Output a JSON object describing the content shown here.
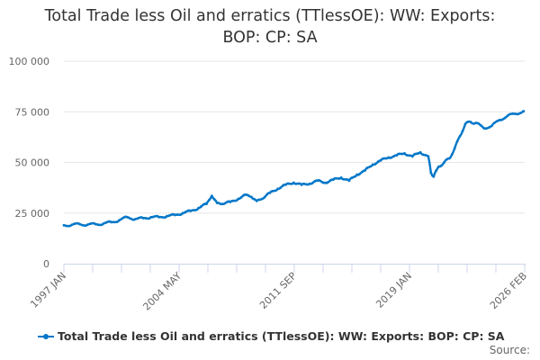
{
  "title": "Total Trade less Oil and erratics (TTlessOE): WW: Exports: BOP: CP: SA",
  "title_lines": [
    "Total Trade less Oil and erratics (TTlessOE): WW: Exports:",
    "BOP: CP: SA"
  ],
  "legend": {
    "label": "Total Trade less Oil and erratics (TTlessOE): WW: Exports: BOP: CP: SA"
  },
  "source_label": "Source:",
  "colors": {
    "series": "#0077c8",
    "grid": "#e6e6e6",
    "axis": "#ccd6eb",
    "text": "#333333",
    "tick_text": "#666666"
  },
  "chart_data": {
    "type": "line",
    "title": "Total Trade less Oil and erratics (TTlessOE): WW: Exports: BOP: CP: SA",
    "xlabel": "",
    "ylabel": "",
    "ylim": [
      0,
      100000
    ],
    "yticks": [
      0,
      25000,
      50000,
      75000,
      100000
    ],
    "ytick_labels": [
      "0",
      "25 000",
      "50 000",
      "75 000",
      "100 000"
    ],
    "xtick_labels": [
      "1997 JAN",
      "2004 MAY",
      "2011 SEP",
      "2019 JAN",
      "2026 FEB"
    ],
    "grid": true,
    "legend_position": "bottom",
    "series": [
      {
        "name": "Total Trade less Oil and erratics (TTlessOE): WW: Exports: BOP: CP: SA",
        "x": [
          "1997 JAN",
          "1997 JUL",
          "1998 JAN",
          "1998 JUL",
          "1999 JAN",
          "1999 JUL",
          "2000 JAN",
          "2000 JUL",
          "2001 JAN",
          "2001 JUL",
          "2002 JAN",
          "2002 JUL",
          "2003 JAN",
          "2003 JUL",
          "2004 JAN",
          "2004 JUL",
          "2005 JAN",
          "2005 JUL",
          "2006 JAN",
          "2006 MAY",
          "2006 SEP",
          "2007 JAN",
          "2007 JUL",
          "2008 JAN",
          "2008 JUL",
          "2008 NOV",
          "2009 MAR",
          "2009 JUL",
          "2010 JAN",
          "2010 JUL",
          "2011 JAN",
          "2011 JUL",
          "2012 JAN",
          "2012 JUL",
          "2013 JAN",
          "2013 JUL",
          "2014 JAN",
          "2014 JUL",
          "2015 JAN",
          "2015 JUL",
          "2016 JAN",
          "2016 JUL",
          "2017 JAN",
          "2017 JUL",
          "2018 JAN",
          "2018 JUL",
          "2019 JAN",
          "2019 JUL",
          "2020 JAN",
          "2020 MAR",
          "2020 MAY",
          "2020 SEP",
          "2021 JAN",
          "2021 MAY",
          "2021 SEP",
          "2022 JAN",
          "2022 MAY",
          "2022 SEP",
          "2023 JAN",
          "2023 JUL",
          "2024 JAN",
          "2024 JUL",
          "2025 JAN",
          "2025 JUL",
          "2026 FEB"
        ],
        "values": [
          19000,
          19200,
          19500,
          19300,
          19500,
          19800,
          20500,
          21500,
          23000,
          22000,
          22500,
          23000,
          23000,
          23500,
          24000,
          25000,
          26000,
          27500,
          29500,
          33500,
          30000,
          29500,
          30500,
          32000,
          34000,
          33000,
          31000,
          32000,
          35000,
          37000,
          39000,
          40000,
          39000,
          39500,
          41000,
          40000,
          41500,
          42500,
          41000,
          44000,
          46000,
          49000,
          51000,
          52500,
          53500,
          54500,
          53000,
          55000,
          53000,
          45000,
          43000,
          48000,
          50000,
          52000,
          57000,
          63000,
          69000,
          70000,
          69500,
          67000,
          68000,
          71000,
          73000,
          74000,
          75500
        ]
      }
    ]
  }
}
